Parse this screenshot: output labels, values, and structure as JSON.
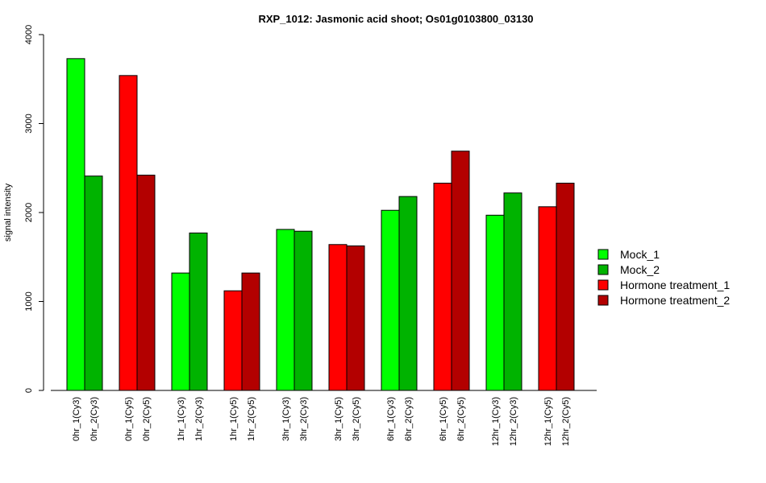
{
  "chart_data": {
    "type": "bar",
    "title": "RXP_1012: Jasmonic acid shoot; Os01g0103800_03130",
    "xlabel": "",
    "ylabel": "signal intensity",
    "ylim": [
      0,
      4000
    ],
    "yticks": [
      0,
      1000,
      2000,
      3000,
      4000
    ],
    "grid": false,
    "legend_position": "right",
    "bars": [
      {
        "label": "0hr_1(Cy3)",
        "value": 3730,
        "series": "Mock_1"
      },
      {
        "label": "0hr_2(Cy3)",
        "value": 2410,
        "series": "Mock_2"
      },
      {
        "label": "0hr_1(Cy5)",
        "value": 3540,
        "series": "Hormone treatment_1"
      },
      {
        "label": "0hr_2(Cy5)",
        "value": 2420,
        "series": "Hormone treatment_2"
      },
      {
        "label": "1hr_1(Cy3)",
        "value": 1320,
        "series": "Mock_1"
      },
      {
        "label": "1hr_2(Cy3)",
        "value": 1770,
        "series": "Mock_2"
      },
      {
        "label": "1hr_1(Cy5)",
        "value": 1120,
        "series": "Hormone treatment_1"
      },
      {
        "label": "1hr_2(Cy5)",
        "value": 1320,
        "series": "Hormone treatment_2"
      },
      {
        "label": "3hr_1(Cy3)",
        "value": 1810,
        "series": "Mock_1"
      },
      {
        "label": "3hr_2(Cy3)",
        "value": 1790,
        "series": "Mock_2"
      },
      {
        "label": "3hr_1(Cy5)",
        "value": 1640,
        "series": "Hormone treatment_1"
      },
      {
        "label": "3hr_2(Cy5)",
        "value": 1625,
        "series": "Hormone treatment_2"
      },
      {
        "label": "6hr_1(Cy3)",
        "value": 2025,
        "series": "Mock_1"
      },
      {
        "label": "6hr_2(Cy3)",
        "value": 2180,
        "series": "Mock_2"
      },
      {
        "label": "6hr_1(Cy5)",
        "value": 2330,
        "series": "Hormone treatment_1"
      },
      {
        "label": "6hr_2(Cy5)",
        "value": 2690,
        "series": "Hormone treatment_2"
      },
      {
        "label": "12hr_1(Cy3)",
        "value": 1970,
        "series": "Mock_1"
      },
      {
        "label": "12hr_2(Cy3)",
        "value": 2220,
        "series": "Mock_2"
      },
      {
        "label": "12hr_1(Cy5)",
        "value": 2065,
        "series": "Hormone treatment_1"
      },
      {
        "label": "12hr_2(Cy5)",
        "value": 2330,
        "series": "Hormone treatment_2"
      }
    ],
    "legend": [
      {
        "name": "Mock_1",
        "color": "#00ff00"
      },
      {
        "name": "Mock_2",
        "color": "#00b300"
      },
      {
        "name": "Hormone treatment_1",
        "color": "#ff0000"
      },
      {
        "name": "Hormone treatment_2",
        "color": "#b30000"
      }
    ]
  }
}
